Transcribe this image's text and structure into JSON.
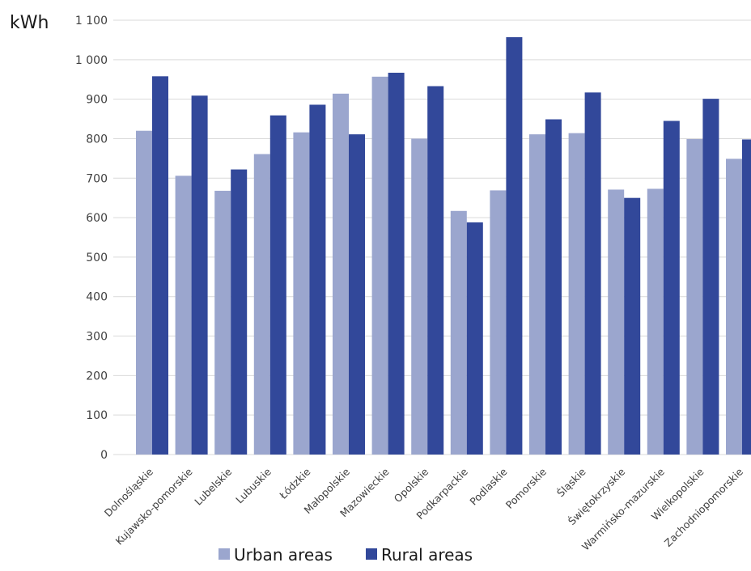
{
  "chart_data": {
    "type": "bar",
    "title": "",
    "ylabel": "kWh",
    "xlabel": "",
    "ylim": [
      0,
      1100
    ],
    "yticks": [
      0,
      100,
      200,
      300,
      400,
      500,
      600,
      700,
      800,
      900,
      1000,
      1100
    ],
    "ytick_labels": [
      "0",
      "100",
      "200",
      "300",
      "400",
      "500",
      "600",
      "700",
      "800",
      "900",
      "1 000",
      "1 100"
    ],
    "grid": true,
    "legend_position": "bottom",
    "categories": [
      "Dolnośląskie",
      "Kujawsko-pomorskie",
      "Lubelskie",
      "Lubuskie",
      "Łódzkie",
      "Małopolskie",
      "Mazowieckie",
      "Opolskie",
      "Podkarpackie",
      "Podlaskie",
      "Pomorskie",
      "Śląskie",
      "Świętokrzyskie",
      "Warmińsko-mazurskie",
      "Wielkopolskie",
      "Zachodniopomorskie"
    ],
    "series": [
      {
        "name": "Urban areas",
        "color": "#9ba6ce",
        "values": [
          820,
          706,
          668,
          761,
          816,
          914,
          957,
          800,
          617,
          669,
          811,
          814,
          671,
          673,
          799,
          749
        ]
      },
      {
        "name": "Rural areas",
        "color": "#32489a",
        "values": [
          958,
          909,
          722,
          859,
          886,
          811,
          967,
          933,
          588,
          1057,
          849,
          917,
          650,
          845,
          901,
          798
        ]
      }
    ]
  }
}
